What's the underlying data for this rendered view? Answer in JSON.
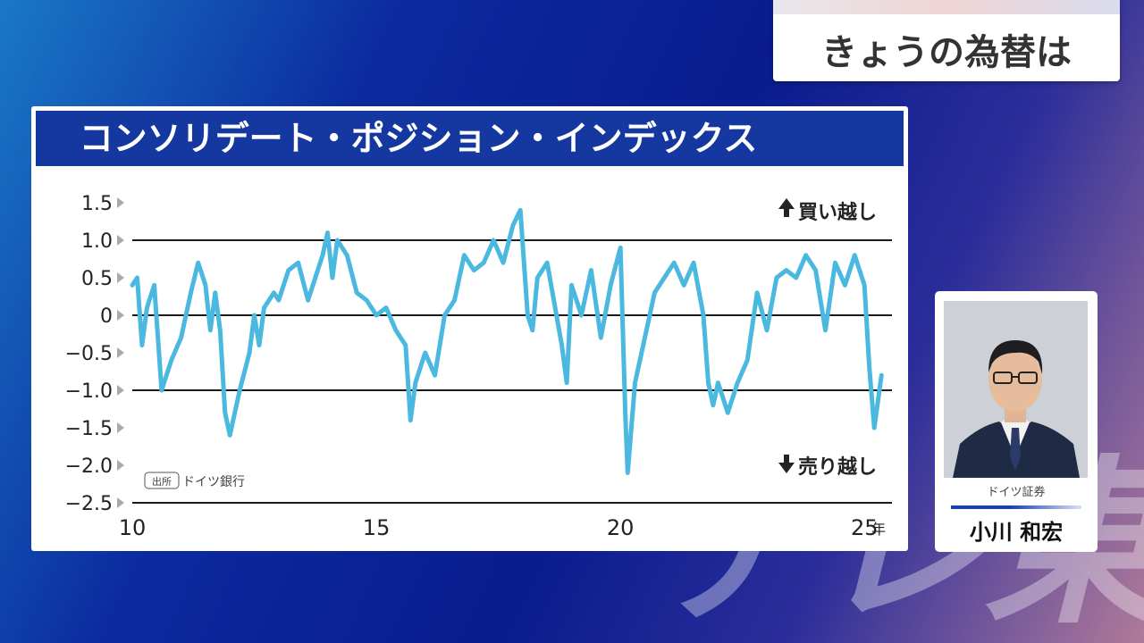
{
  "watermark": "テレ東",
  "topic": {
    "label": "きょうの為替は"
  },
  "chart_data": {
    "type": "line",
    "title": "コンソリデート・ポジション・インデックス",
    "source_box": "出所",
    "source": "ドイツ銀行",
    "x_unit": "年",
    "xlim": [
      10,
      25.6
    ],
    "ylim": [
      -2.5,
      1.5
    ],
    "x_ticks": [
      10,
      15,
      20,
      25
    ],
    "x_tick_labels": [
      "10",
      "15",
      "20",
      "25"
    ],
    "y_ticks": [
      1.5,
      1.0,
      0.5,
      0,
      -0.5,
      -1.0,
      -1.5,
      -2.0,
      -2.5
    ],
    "y_tick_labels": [
      "1.5",
      "1.0",
      "0.5",
      "0",
      "−0.5",
      "−1.0",
      "−1.5",
      "−2.0",
      "−2.5"
    ],
    "reference_lines": [
      1.0,
      0,
      -1.0
    ],
    "upper_label": "買い越し",
    "lower_label": "売り越し",
    "series_color": "#4bb8e0",
    "series": [
      {
        "x": [
          10.0,
          10.1,
          10.2,
          10.3,
          10.45,
          10.6,
          10.8,
          11.0,
          11.2,
          11.35,
          11.5,
          11.6,
          11.7,
          11.8,
          11.9,
          12.0,
          12.2,
          12.4,
          12.5,
          12.6,
          12.7,
          12.9,
          13.0,
          13.2,
          13.4,
          13.6,
          13.8,
          13.9,
          14.0,
          14.1,
          14.2,
          14.4,
          14.6,
          14.8,
          15.0,
          15.2,
          15.4,
          15.6,
          15.7,
          15.8,
          16.0,
          16.2,
          16.4,
          16.6,
          16.8,
          17.0,
          17.2,
          17.4,
          17.6,
          17.8,
          17.95,
          18.1,
          18.2,
          18.3,
          18.5,
          18.8,
          18.9,
          19.0,
          19.2,
          19.4,
          19.6,
          19.8,
          20.0,
          20.1,
          20.15,
          20.3,
          20.5,
          20.7,
          20.9,
          21.1,
          21.3,
          21.5,
          21.7,
          21.8,
          21.9,
          22.0,
          22.2,
          22.4,
          22.6,
          22.8,
          23.0,
          23.2,
          23.4,
          23.6,
          23.8,
          24.0,
          24.2,
          24.4,
          24.6,
          24.8,
          25.0,
          25.1,
          25.2,
          25.35
        ],
        "y": [
          0.4,
          0.5,
          -0.4,
          0.1,
          0.4,
          -1.0,
          -0.6,
          -0.3,
          0.3,
          0.7,
          0.4,
          -0.2,
          0.3,
          -0.2,
          -1.3,
          -1.6,
          -1.0,
          -0.5,
          0.0,
          -0.4,
          0.1,
          0.3,
          0.2,
          0.6,
          0.7,
          0.2,
          0.6,
          0.8,
          1.1,
          0.5,
          1.0,
          0.8,
          0.3,
          0.2,
          0.0,
          0.1,
          -0.2,
          -0.4,
          -1.4,
          -0.9,
          -0.5,
          -0.8,
          0.0,
          0.2,
          0.8,
          0.6,
          0.7,
          1.0,
          0.7,
          1.2,
          1.4,
          0.0,
          -0.2,
          0.5,
          0.7,
          -0.4,
          -0.9,
          0.4,
          0.0,
          0.6,
          -0.3,
          0.4,
          0.9,
          -1.3,
          -2.1,
          -0.9,
          -0.3,
          0.3,
          0.5,
          0.7,
          0.4,
          0.7,
          0.0,
          -0.9,
          -1.2,
          -0.9,
          -1.3,
          -0.9,
          -0.6,
          0.3,
          -0.2,
          0.5,
          0.6,
          0.5,
          0.8,
          0.6,
          -0.2,
          0.7,
          0.4,
          0.8,
          0.4,
          -0.7,
          -1.5,
          -0.8
        ]
      }
    ]
  },
  "person": {
    "company": "ドイツ証券",
    "name": "小川 和宏"
  }
}
